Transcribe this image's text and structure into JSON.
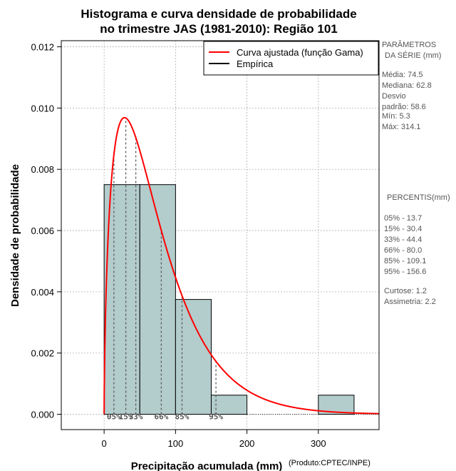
{
  "chart_data": {
    "type": "bar",
    "title": [
      "Histograma e curva densidade de probabilidade",
      "no trimestre JAS (1981-2010): Região 101"
    ],
    "xlabel": "Precipitação acumulada (mm)",
    "ylabel": "Densidade de probabilidade",
    "credit": "(Produto:CPTEC/INPE)",
    "xlim": [
      -60,
      385
    ],
    "ylim": [
      -0.0005,
      0.0122
    ],
    "x_ticks": [
      0,
      100,
      200,
      300
    ],
    "y_ticks": [
      0.0,
      0.002,
      0.004,
      0.006,
      0.008,
      0.01,
      0.012
    ],
    "y_tick_labels": [
      "0.000",
      "0.002",
      "0.004",
      "0.006",
      "0.008",
      "0.010",
      "0.012"
    ],
    "grid": true,
    "histogram": {
      "bin_edges": [
        0,
        50,
        100,
        150,
        200,
        250,
        300,
        350
      ],
      "values": [
        0.0075,
        0.0075,
        0.00375,
        0.000625,
        0.0,
        0.0,
        0.000625
      ],
      "color": "#b3cccc"
    },
    "fitted_curve": {
      "name": "Curva ajustada (função Gama)",
      "distribution": "gamma",
      "shape": 1.62,
      "rate": 0.0217,
      "color": "#ff0000"
    },
    "empirical": {
      "name": "Empírica",
      "color": "#000000"
    },
    "percentiles": [
      {
        "label": "05%",
        "value": 13.7
      },
      {
        "label": "15%",
        "value": 30.4
      },
      {
        "label": "33%",
        "value": 44.4
      },
      {
        "label": "66%",
        "value": 80.0
      },
      {
        "label": "85%",
        "value": 109.1
      },
      {
        "label": "95%",
        "value": 156.6
      }
    ],
    "percentile_axis_text": [
      "05%",
      "15%",
      "33%",
      "66%",
      "85%",
      "95%"
    ],
    "legend_position": "top-right"
  },
  "side_panel": {
    "params_title": [
      "PARÂMETROS",
      "DA SÉRIE (mm)"
    ],
    "params": [
      "Média:  74.5",
      "Mediana:  62.8",
      "Desvio",
      "padrão:  58.6",
      "Mín:  5.3",
      "Máx:  314.1"
    ],
    "percentis_title": "PERCENTIS(mm)",
    "percentis": [
      "05% -   13.7",
      "15% -   30.4",
      "33% -   44.4",
      "66% -   80.0",
      "85% -   109.1",
      "95% -   156.6"
    ],
    "stats": [
      "Curtose:  1.2",
      "Assimetria:  2.2"
    ]
  }
}
